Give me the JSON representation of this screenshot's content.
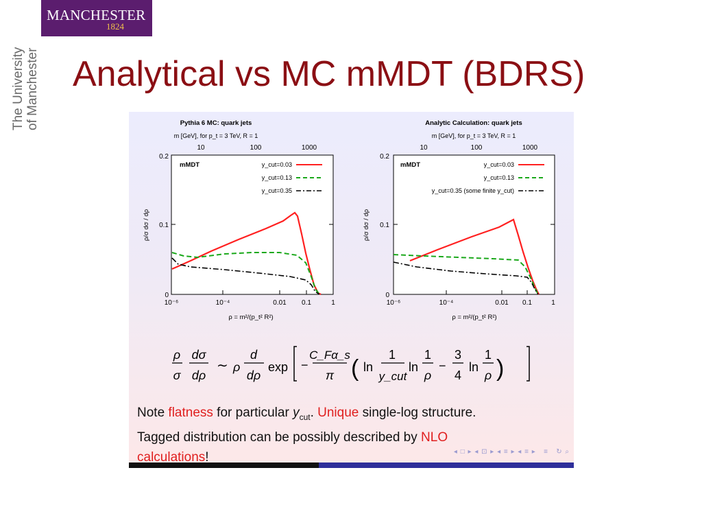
{
  "logo": {
    "name": "MANCHESTER",
    "year": "1824"
  },
  "brand_vertical": {
    "line1": "The University",
    "line2": "of Manchester"
  },
  "title": "Analytical vs MC mMDT (BDRS)",
  "plots": [
    {
      "title": "Pythia 6 MC: quark jets",
      "top_axis_label": "m [GeV], for p_t = 3 TeV, R = 1",
      "top_ticks": [
        "10",
        "100",
        "1000"
      ],
      "panel_label": "mMDT",
      "legend": [
        "y_cut=0.03",
        "y_cut=0.13",
        "y_cut=0.35"
      ],
      "ylabel": "ρ/σ dσ / dρ",
      "xlabel": "ρ = m²/(p_t² R²)",
      "y_ticks": [
        "0.2",
        "0.1",
        "0"
      ],
      "x_ticks": [
        "10⁻⁶",
        "10⁻⁴",
        "0.01",
        "0.1",
        "1"
      ]
    },
    {
      "title": "Analytic Calculation: quark jets",
      "top_axis_label": "m [GeV], for p_t = 3 TeV, R = 1",
      "top_ticks": [
        "10",
        "100",
        "1000"
      ],
      "panel_label": "mMDT",
      "legend": [
        "y_cut=0.03",
        "y_cut=0.13",
        "y_cut=0.35 (some finite y_cut)"
      ],
      "ylabel": "ρ/σ dσ / dρ",
      "xlabel": "ρ = m²/(p_t² R²)",
      "y_ticks": [
        "0.2",
        "0.1",
        "0"
      ],
      "x_ticks": [
        "10⁻⁶",
        "10⁻⁴",
        "0.01",
        "0.1",
        "1"
      ]
    }
  ],
  "formula_note": "ρ/σ dσ/dρ ~ ρ d/dρ exp[−(C_F α_s/π)(ln 1/y_cut ln 1/ρ − 3/4 ln 1/ρ)]",
  "note": {
    "p1": "Note ",
    "flatness": "flatness",
    "p2": " for particular ",
    "ycut_y": "y",
    "ycut_sub": "cut",
    "p3": ". ",
    "unique": "Unique",
    "p4": " single-log structure.",
    "p5": "Tagged distribution can be possibly described by ",
    "nlo": "NLO",
    "calc": "calculations",
    "p6": "!"
  },
  "colors": {
    "title": "#8b0f14",
    "logo_bg": "#5b1d6e",
    "red_curve": "#ff2020",
    "green_curve": "#1aa81a",
    "black_curve": "#000000",
    "highlight": "#e01f1f"
  }
}
